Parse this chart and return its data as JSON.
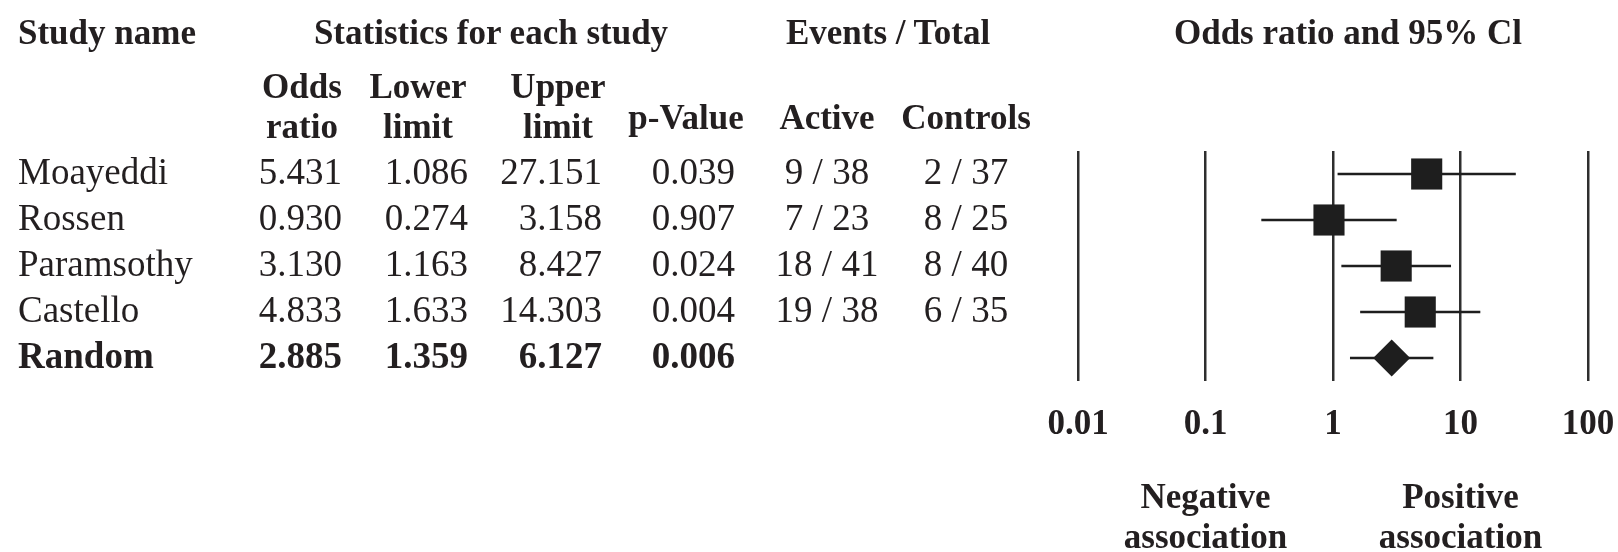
{
  "chart_data": {
    "type": "scatter",
    "orientation": "horizontal",
    "title": "Odds ratio and 95% Cl",
    "categories": [
      null,
      null,
      null,
      null,
      null
    ],
    "series": [
      {
        "color": "#1e1e1e",
        "marker": "square",
        "values": [
          5.431,
          0.93,
          3.13,
          4.833,
          null
        ],
        "errors": [
          [
            1.086,
            27.151
          ],
          [
            0.274,
            3.158
          ],
          [
            1.163,
            8.427
          ],
          [
            1.633,
            14.303
          ],
          null
        ],
        "value_labels": [
          "5.431",
          "0.930",
          "3.130",
          "4.833",
          null
        ]
      },
      {
        "color": "#1e1e1e",
        "marker": "diamond",
        "values": [
          null,
          null,
          null,
          null,
          2.885
        ],
        "errors": [
          null,
          null,
          null,
          null,
          [
            1.359,
            6.127
          ]
        ]
      }
    ],
    "log": "x",
    "xlim": [
      0.01,
      100
    ],
    "xticks": [
      0.01,
      0.1,
      1,
      10,
      100
    ],
    "grid": "x",
    "tick_labels": "x",
    "annotations": [
      "Study name",
      "Statistics for each study",
      "Events / Total",
      "Odds ratio",
      "Lower limit",
      "Upper limit",
      "p-Value",
      "Active",
      "Controls",
      "Moayeddi",
      "1.086",
      "27.151",
      "0.039",
      "9 / 38",
      "2 / 37",
      "Rossen",
      "0.274",
      "3.158",
      "0.907",
      "7 / 23",
      "8 / 25",
      "Paramsothy",
      "1.163",
      "8.427",
      "0.024",
      "18 / 41",
      "8 / 40",
      "Castello",
      "1.633",
      "14.303",
      "0.004",
      "19 / 38",
      "6 / 35",
      "Random",
      "2.885",
      "1.359",
      "6.127",
      "0.006",
      "Negative association",
      "Positive association"
    ]
  }
}
